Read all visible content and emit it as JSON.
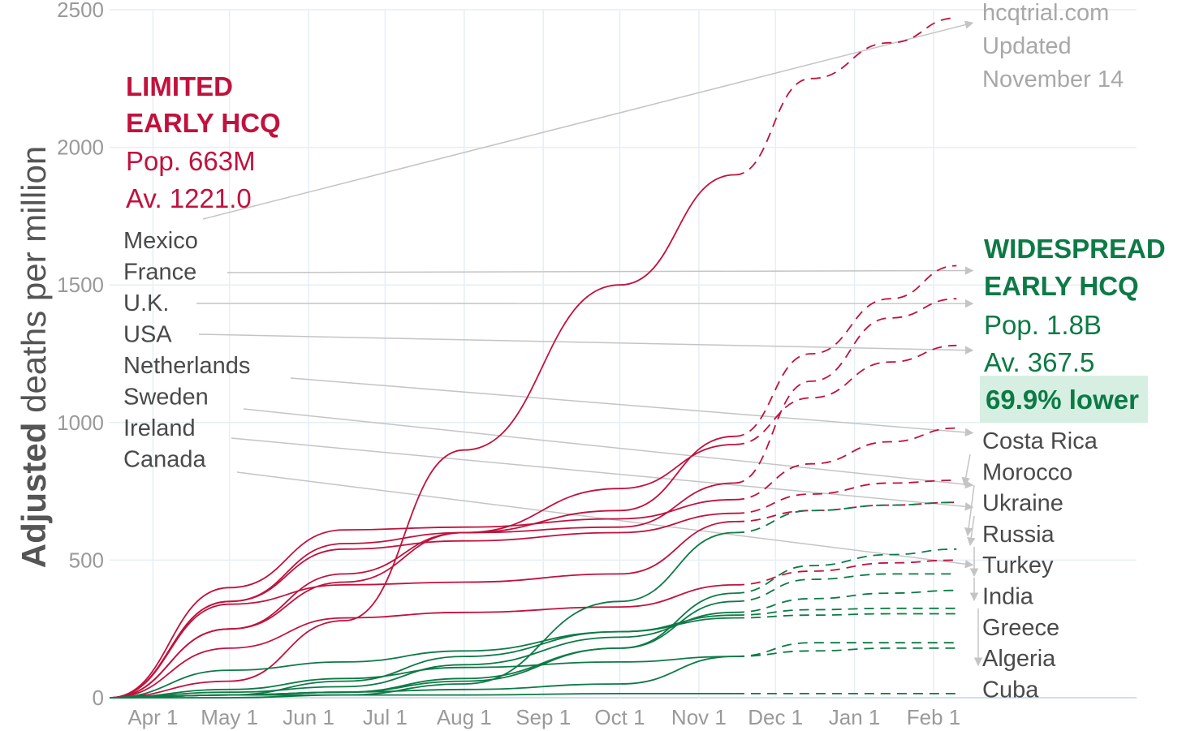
{
  "chart_data": {
    "type": "line",
    "ylabel_bold": "Adjusted",
    "ylabel_rest": " deaths per million",
    "ylim": [
      0,
      2500
    ],
    "yticks": [
      0,
      500,
      1000,
      1500,
      2000,
      2500
    ],
    "xticks": [
      "Apr 1",
      "May 1",
      "Jun 1",
      "Jul 1",
      "Aug 1",
      "Sep 1",
      "Oct 1",
      "Nov 1",
      "Dec 1",
      "Jan 1",
      "Feb 1"
    ],
    "grid": true,
    "source": [
      "hcqtrial.com",
      "Updated",
      "November 14"
    ],
    "limited": {
      "color": "#c0123d",
      "heading": [
        "LIMITED",
        "EARLY HCQ"
      ],
      "pop": "Pop. 663M",
      "avg": "Av. 1221.0",
      "countries": [
        "Mexico",
        "France",
        "U.K.",
        "USA",
        "Netherlands",
        "Sweden",
        "Ireland",
        "Canada"
      ]
    },
    "widespread": {
      "color": "#0d7a46",
      "heading": [
        "WIDESPREAD",
        "EARLY HCQ"
      ],
      "pop": "Pop. 1.8B",
      "avg": "Av. 367.5",
      "lower": "69.9% lower",
      "highlight": "#d6efe2",
      "countries": [
        "Costa Rica",
        "Morocco",
        "Ukraine",
        "Russia",
        "Turkey",
        "India",
        "Greece",
        "Algeria",
        "Cuba"
      ]
    },
    "series": [
      {
        "name": "Mexico",
        "group": "limited",
        "values": [
          0,
          60,
          280,
          900,
          1500,
          1900,
          2250,
          2380,
          2470
        ]
      },
      {
        "name": "France",
        "group": "limited",
        "values": [
          0,
          250,
          450,
          600,
          680,
          950,
          1250,
          1450,
          1570
        ]
      },
      {
        "name": "U.K.",
        "group": "limited",
        "values": [
          0,
          350,
          560,
          600,
          620,
          780,
          1150,
          1380,
          1450
        ]
      },
      {
        "name": "USA",
        "group": "limited",
        "values": [
          0,
          250,
          420,
          600,
          760,
          920,
          1090,
          1220,
          1280
        ]
      },
      {
        "name": "Netherlands",
        "group": "limited",
        "values": [
          0,
          400,
          610,
          620,
          650,
          720,
          850,
          930,
          980
        ]
      },
      {
        "name": "Sweden",
        "group": "limited",
        "values": [
          0,
          350,
          540,
          570,
          600,
          670,
          740,
          780,
          790
        ]
      },
      {
        "name": "Ireland",
        "group": "limited",
        "values": [
          0,
          340,
          410,
          420,
          450,
          640,
          680,
          700,
          710
        ]
      },
      {
        "name": "Canada",
        "group": "limited",
        "values": [
          0,
          180,
          290,
          310,
          330,
          410,
          460,
          490,
          500
        ]
      },
      {
        "name": "Costa Rica",
        "group": "widespread",
        "values": [
          0,
          0,
          10,
          50,
          350,
          600,
          680,
          700,
          710
        ]
      },
      {
        "name": "Morocco",
        "group": "widespread",
        "values": [
          0,
          10,
          20,
          70,
          180,
          380,
          480,
          520,
          540
        ]
      },
      {
        "name": "Ukraine",
        "group": "widespread",
        "values": [
          0,
          10,
          20,
          60,
          180,
          350,
          430,
          450,
          450
        ]
      },
      {
        "name": "Russia",
        "group": "widespread",
        "values": [
          0,
          20,
          40,
          120,
          220,
          310,
          360,
          380,
          390
        ]
      },
      {
        "name": "Turkey",
        "group": "widespread",
        "values": [
          0,
          100,
          130,
          170,
          240,
          290,
          300,
          305,
          305
        ]
      },
      {
        "name": "India",
        "group": "widespread",
        "values": [
          0,
          10,
          60,
          150,
          240,
          300,
          320,
          325,
          325
        ]
      },
      {
        "name": "Greece",
        "group": "widespread",
        "values": [
          0,
          10,
          20,
          30,
          50,
          150,
          200,
          200,
          200
        ]
      },
      {
        "name": "Algeria",
        "group": "widespread",
        "values": [
          0,
          30,
          70,
          110,
          130,
          150,
          170,
          180,
          180
        ]
      },
      {
        "name": "Cuba",
        "group": "widespread",
        "values": [
          0,
          10,
          10,
          10,
          15,
          15,
          15,
          15,
          15
        ]
      }
    ],
    "series_x": [
      "Mar 15",
      "May 1",
      "Jun 15",
      "Aug 1",
      "Oct 1",
      "Nov 15",
      "Dec 15",
      "Jan 15",
      "Feb 10"
    ],
    "solid_until": "Nov 15"
  }
}
